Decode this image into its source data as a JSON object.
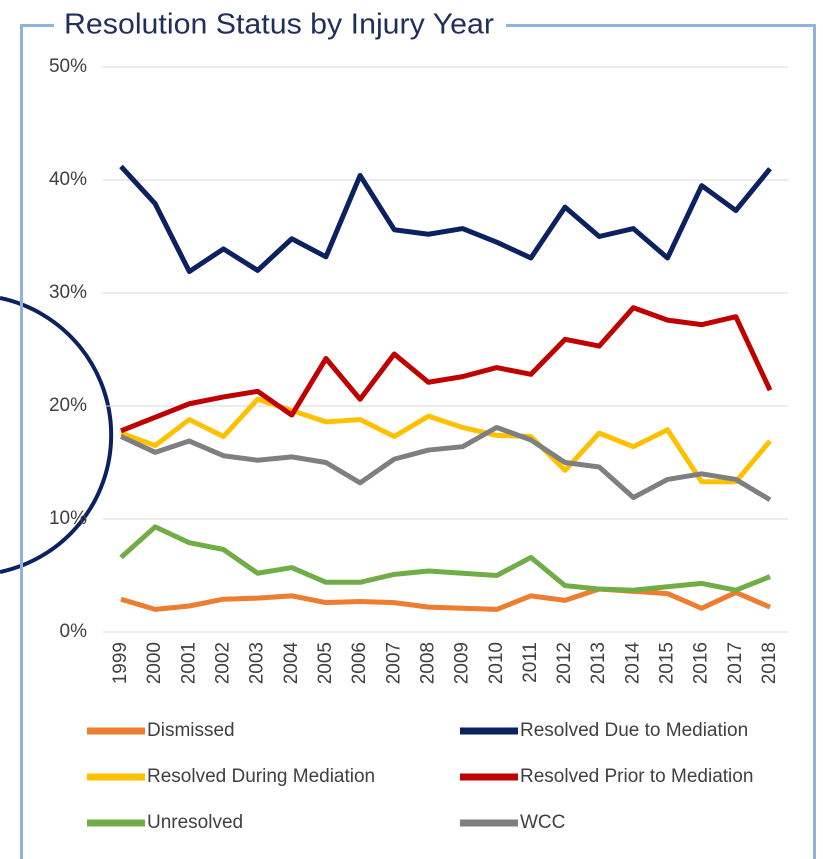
{
  "chart_data": {
    "type": "line",
    "title": "Resolution Status by Injury Year",
    "categories": [
      "1999",
      "2000",
      "2001",
      "2002",
      "2003",
      "2004",
      "2005",
      "2006",
      "2007",
      "2008",
      "2009",
      "2010",
      "2011",
      "2012",
      "2013",
      "2014",
      "2015",
      "2016",
      "2017",
      "2018"
    ],
    "ylim": [
      0,
      50
    ],
    "yticks": [
      {
        "value": 0,
        "label": "0%"
      },
      {
        "value": 10,
        "label": "10%"
      },
      {
        "value": 20,
        "label": "20%"
      },
      {
        "value": 30,
        "label": "30%"
      },
      {
        "value": 40,
        "label": "40%"
      },
      {
        "value": 50,
        "label": "50%"
      }
    ],
    "grid": true,
    "legend": "bottom",
    "series": [
      {
        "name": "Dismissed",
        "color": "#ed7d31",
        "values": [
          2.9,
          2.0,
          2.3,
          2.9,
          3.0,
          3.2,
          2.6,
          2.7,
          2.6,
          2.2,
          2.1,
          2.0,
          3.2,
          2.8,
          3.8,
          3.6,
          3.4,
          2.1,
          3.5,
          2.2
        ]
      },
      {
        "name": "Resolved Due to Mediation",
        "color": "#0b2160",
        "values": [
          41.2,
          37.9,
          31.9,
          33.9,
          32.0,
          34.8,
          33.2,
          40.4,
          35.6,
          35.2,
          35.7,
          34.5,
          33.1,
          37.6,
          35.0,
          35.7,
          33.1,
          39.5,
          37.3,
          41.0
        ]
      },
      {
        "name": "Resolved During Mediation",
        "color": "#ffc000",
        "values": [
          17.6,
          16.5,
          18.8,
          17.3,
          20.6,
          19.6,
          18.6,
          18.8,
          17.3,
          19.1,
          18.1,
          17.4,
          17.3,
          14.3,
          17.6,
          16.4,
          17.9,
          13.3,
          13.3,
          16.9
        ]
      },
      {
        "name": "Resolved Prior to Mediation",
        "color": "#c00000",
        "values": [
          17.8,
          19.0,
          20.2,
          20.8,
          21.3,
          19.2,
          24.2,
          20.6,
          24.6,
          22.1,
          22.6,
          23.4,
          22.8,
          25.9,
          25.3,
          28.7,
          27.6,
          27.2,
          27.9,
          21.4
        ]
      },
      {
        "name": "Unresolved",
        "color": "#70ad47",
        "values": [
          6.6,
          9.3,
          7.9,
          7.3,
          5.2,
          5.7,
          4.4,
          4.4,
          5.1,
          5.4,
          5.2,
          5.0,
          6.6,
          4.1,
          3.8,
          3.7,
          4.0,
          4.3,
          3.7,
          4.9
        ]
      },
      {
        "name": "WCC",
        "color": "#7f7f7f",
        "values": [
          17.3,
          15.9,
          16.9,
          15.6,
          15.2,
          15.5,
          15.0,
          13.2,
          15.3,
          16.1,
          16.4,
          18.1,
          17.0,
          15.0,
          14.6,
          11.9,
          13.5,
          14.0,
          13.5,
          11.7
        ]
      }
    ]
  }
}
